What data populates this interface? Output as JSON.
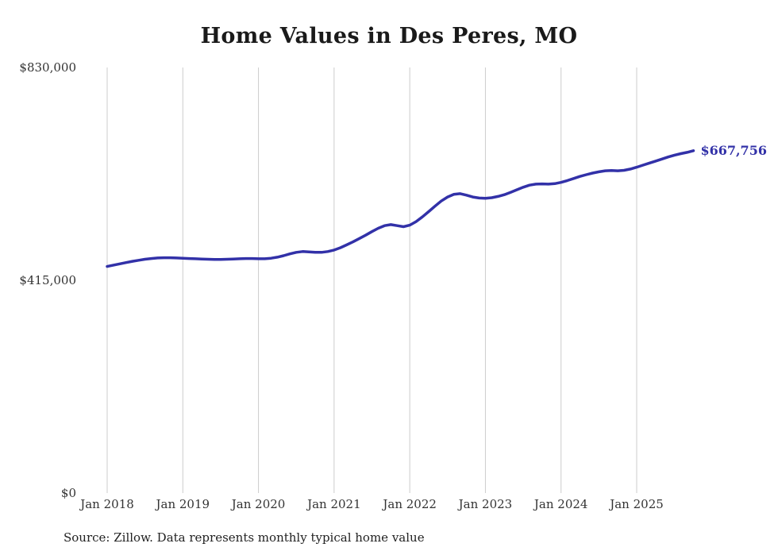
{
  "chart": {
    "title": "Home Values in Des Peres, MO",
    "source_note": "Source: Zillow. Data represents monthly typical home value",
    "end_label": "$667,756",
    "colors": {
      "line": "#3231a8",
      "end_label": "#3231a8",
      "grid": "#cccccc",
      "title_text": "#1a1a1a",
      "axis_text": "#333333",
      "source_text": "#222222"
    }
  },
  "chart_data": {
    "type": "line",
    "title": "Home Values in Des Peres, MO",
    "xlabel": "",
    "ylabel": "",
    "ylim": [
      0,
      830000
    ],
    "grid": "vertical-only",
    "legend": "none",
    "series_name": "Typical home value (monthly)",
    "final_value": 667756,
    "final_value_label": "$667,756",
    "yticks": [
      {
        "label": "$0",
        "value": 0
      },
      {
        "label": "$415,000",
        "value": 415000
      },
      {
        "label": "$830,000",
        "value": 830000
      }
    ],
    "xticks": [
      {
        "label": "Jan 2018",
        "month_index": 0
      },
      {
        "label": "Jan 2019",
        "month_index": 12
      },
      {
        "label": "Jan 2020",
        "month_index": 24
      },
      {
        "label": "Jan 2021",
        "month_index": 36
      },
      {
        "label": "Jan 2022",
        "month_index": 48
      },
      {
        "label": "Jan 2023",
        "month_index": 60
      },
      {
        "label": "Jan 2024",
        "month_index": 72
      },
      {
        "label": "Jan 2025",
        "month_index": 84
      }
    ],
    "x": [
      "2018-01",
      "2018-02",
      "2018-03",
      "2018-04",
      "2018-05",
      "2018-06",
      "2018-07",
      "2018-08",
      "2018-09",
      "2018-10",
      "2018-11",
      "2018-12",
      "2019-01",
      "2019-02",
      "2019-03",
      "2019-04",
      "2019-05",
      "2019-06",
      "2019-07",
      "2019-08",
      "2019-09",
      "2019-10",
      "2019-11",
      "2019-12",
      "2020-01",
      "2020-02",
      "2020-03",
      "2020-04",
      "2020-05",
      "2020-06",
      "2020-07",
      "2020-08",
      "2020-09",
      "2020-10",
      "2020-11",
      "2020-12",
      "2021-01",
      "2021-02",
      "2021-03",
      "2021-04",
      "2021-05",
      "2021-06",
      "2021-07",
      "2021-08",
      "2021-09",
      "2021-10",
      "2021-11",
      "2021-12",
      "2022-01",
      "2022-02",
      "2022-03",
      "2022-04",
      "2022-05",
      "2022-06",
      "2022-07",
      "2022-08",
      "2022-09",
      "2022-10",
      "2022-11",
      "2022-12",
      "2023-01",
      "2023-02",
      "2023-03",
      "2023-04",
      "2023-05",
      "2023-06",
      "2023-07",
      "2023-08",
      "2023-09",
      "2023-10",
      "2023-11",
      "2023-12",
      "2024-01",
      "2024-02",
      "2024-03",
      "2024-04",
      "2024-05",
      "2024-06",
      "2024-07",
      "2024-08",
      "2024-09",
      "2024-10",
      "2024-11",
      "2024-12",
      "2025-01",
      "2025-02",
      "2025-03",
      "2025-04",
      "2025-05",
      "2025-06",
      "2025-07",
      "2025-08",
      "2025-09",
      "2025-10"
    ],
    "values": [
      442000,
      444500,
      447000,
      449500,
      452000,
      454000,
      456000,
      457500,
      458500,
      459000,
      459000,
      458500,
      458000,
      457500,
      457000,
      456500,
      456000,
      455500,
      455500,
      456000,
      456500,
      457000,
      457500,
      457500,
      457000,
      457000,
      458000,
      460000,
      463000,
      466500,
      469500,
      471000,
      470500,
      469500,
      469500,
      471000,
      474000,
      478500,
      484000,
      490000,
      496500,
      503000,
      510000,
      516500,
      521500,
      523500,
      521500,
      519500,
      522500,
      529500,
      538500,
      549000,
      559500,
      569500,
      577500,
      582500,
      584000,
      581000,
      577500,
      575500,
      575000,
      576000,
      578500,
      582000,
      586500,
      591500,
      596500,
      600500,
      602500,
      603000,
      602500,
      603500,
      606000,
      609500,
      613500,
      617500,
      621000,
      624000,
      626500,
      628500,
      629000,
      628500,
      629500,
      632000,
      635500,
      639500,
      643500,
      647500,
      651500,
      655500,
      659000,
      662000,
      664500,
      667756
    ]
  }
}
